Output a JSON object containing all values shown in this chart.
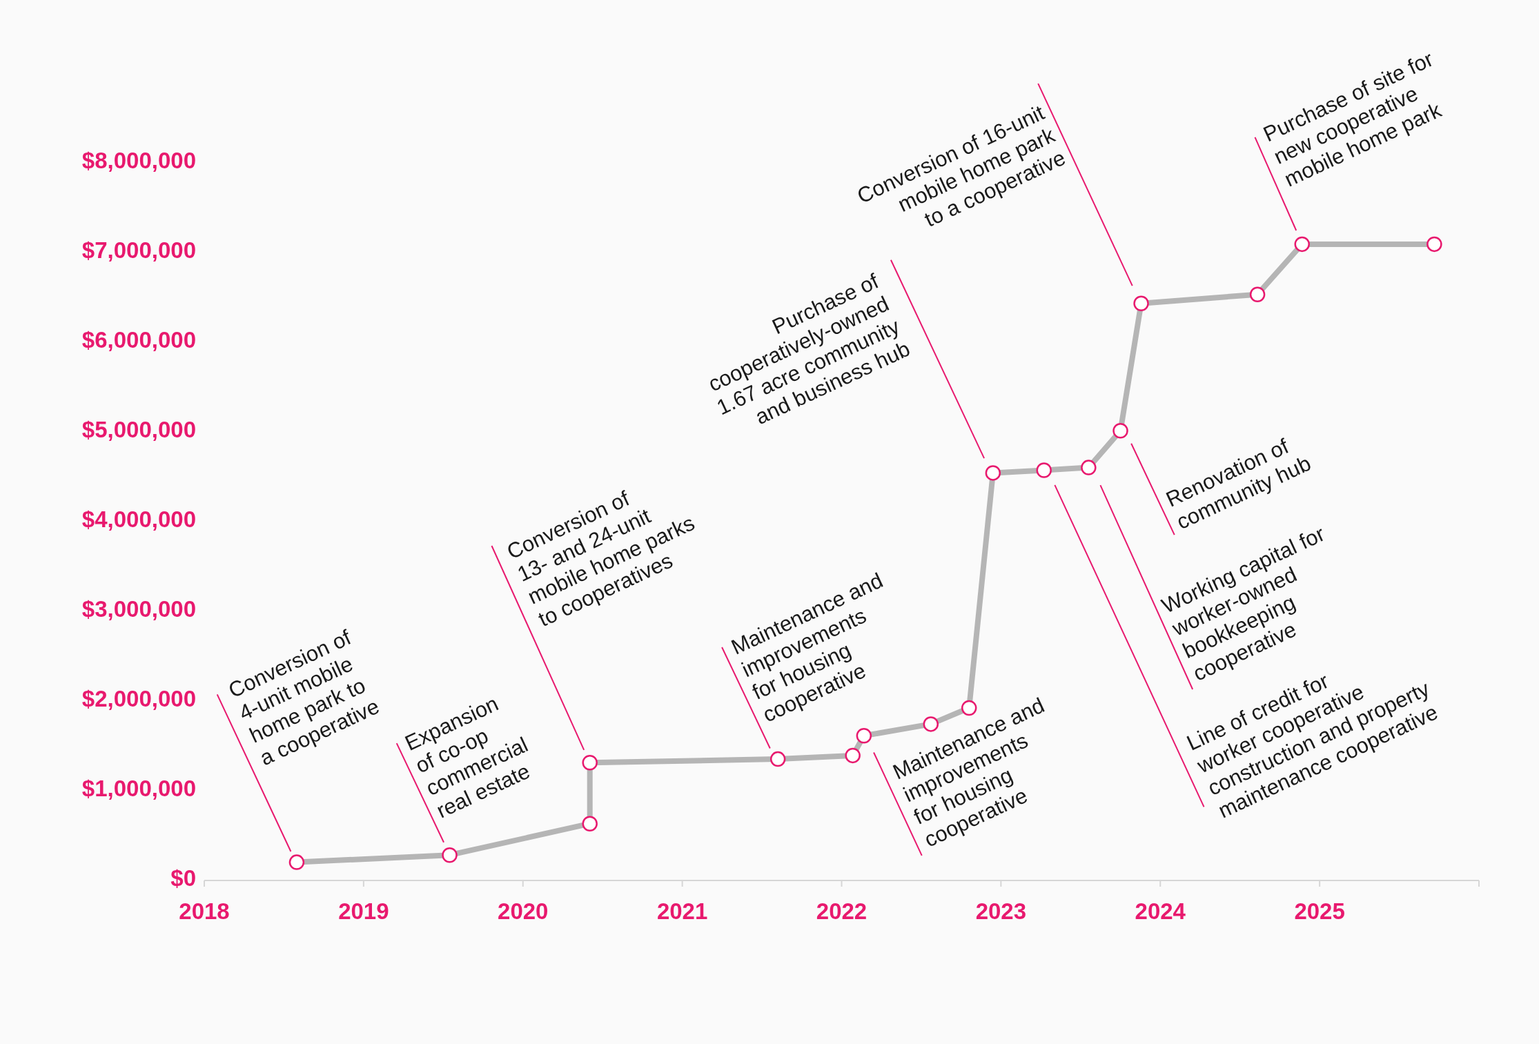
{
  "chart_data": {
    "type": "line",
    "xlim": [
      2018,
      2026
    ],
    "xticks": [
      2018,
      2019,
      2020,
      2021,
      2022,
      2023,
      2024,
      2025
    ],
    "ylim": [
      0,
      8000000
    ],
    "yticks": [
      {
        "value": 0,
        "label": "$0"
      },
      {
        "value": 1000000,
        "label": "$1,000,000"
      },
      {
        "value": 2000000,
        "label": "$2,000,000"
      },
      {
        "value": 3000000,
        "label": "$3,000,000"
      },
      {
        "value": 4000000,
        "label": "$4,000,000"
      },
      {
        "value": 5000000,
        "label": "$5,000,000"
      },
      {
        "value": 6000000,
        "label": "$6,000,000"
      },
      {
        "value": 7000000,
        "label": "$7,000,000"
      },
      {
        "value": 8000000,
        "label": "$8,000,000"
      }
    ],
    "grid": false,
    "marker": "circle",
    "line_style": "solid",
    "series": [
      {
        "color": "#b5b5b5",
        "x": [
          2018.58,
          2019.54,
          2020.42,
          2020.42,
          2021.6,
          2022.07,
          2022.14,
          2022.56,
          2022.8,
          2022.95,
          2023.27,
          2023.55,
          2023.75,
          2023.88,
          2024.61,
          2024.89,
          2025.72
        ],
        "values": [
          180000,
          260000,
          610000,
          1290000,
          1330000,
          1370000,
          1590000,
          1720000,
          1900000,
          4520000,
          4550000,
          4580000,
          4990000,
          6410000,
          6510000,
          7070000,
          7070000
        ]
      }
    ],
    "annotations": [
      "Conversion of\n4-unit mobile\nhome park to\na cooperative",
      "Expansion\nof co-op\ncommercial\nreal estate",
      "Conversion of\n13- and 24-unit\nmobile home parks\nto cooperatives",
      "Maintenance and\nimprovements\nfor housing\ncooperative",
      "Maintenance and\nimprovements\nfor housing\ncooperative",
      "Purchase of\ncooperatively-owned\n1.67 acre community\nand business hub",
      "Conversion of 16-unit\nmobile home park\nto a cooperative",
      "Purchase of site for\nnew cooperative\nmobile home park",
      "Renovation of\ncommunity hub",
      "Working capital for\nworker-owned\nbookkeeping\ncooperative",
      "Line of credit for\nworker cooperative\nconstruction and property\nmaintenance cooperative"
    ]
  }
}
